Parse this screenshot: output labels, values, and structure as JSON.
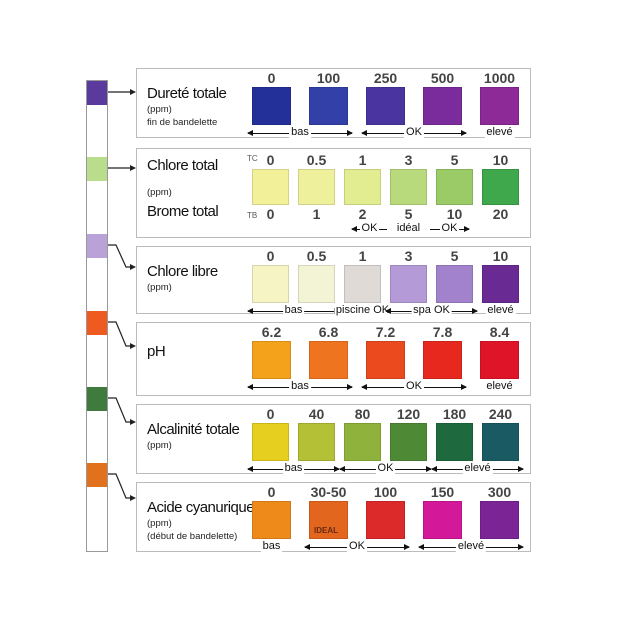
{
  "strip_pads": [
    "#5a3a9c",
    "#b9dd8c",
    "#b9a2d8",
    "#ee5a1f",
    "#3f7b3d",
    "#e2711d"
  ],
  "panels": [
    {
      "title": "Dureté totale",
      "sub": [
        "(ppm)",
        "fin de bandelette"
      ],
      "values": [
        "0",
        "100",
        "250",
        "500",
        "1000"
      ],
      "colors": [
        "#24309a",
        "#3340a8",
        "#4a34a0",
        "#7a2c9c",
        "#8d2a98"
      ],
      "ranges": [
        {
          "label": "bas",
          "from": 0,
          "to": 1,
          "arrows": "both"
        },
        {
          "label": "OK",
          "from": 2,
          "to": 3,
          "arrows": "both"
        },
        {
          "label": "elevé",
          "from": 4,
          "to": 4,
          "arrows": "none"
        }
      ]
    },
    {
      "title": "Chlore total",
      "title2": "Brome total",
      "sub": [
        "(ppm)"
      ],
      "tag_top": "TC",
      "tag_bottom": "TB",
      "values": [
        "0",
        "0.5",
        "1",
        "3",
        "5",
        "10"
      ],
      "values2": [
        "0",
        "1",
        "2",
        "5",
        "10",
        "20"
      ],
      "colors": [
        "#f3f09a",
        "#eef09c",
        "#e2ec90",
        "#b8da7c",
        "#9acb66",
        "#3fa84c"
      ],
      "ranges": [
        {
          "label": "OK",
          "from": 2,
          "to": 2,
          "arrows": "left"
        },
        {
          "label": "idéal",
          "from": 3,
          "to": 3,
          "arrows": "none"
        },
        {
          "label": "OK",
          "from": 4,
          "to": 4,
          "arrows": "right"
        }
      ]
    },
    {
      "title": "Chlore libre",
      "sub": [
        "(ppm)"
      ],
      "values": [
        "0",
        "0.5",
        "1",
        "3",
        "5",
        "10"
      ],
      "colors": [
        "#f6f3c4",
        "#f3f3d6",
        "#e0dad6",
        "#b49ad6",
        "#a282cc",
        "#6a2a94"
      ],
      "ranges": [
        {
          "label": "bas",
          "from": 0,
          "to": 1,
          "arrows": "both"
        },
        {
          "label": "piscine OK",
          "from": 2,
          "to": 2,
          "arrows": "both"
        },
        {
          "label": "spa OK",
          "from": 3,
          "to": 4,
          "arrows": "both"
        },
        {
          "label": "elevé",
          "from": 5,
          "to": 5,
          "arrows": "none"
        }
      ]
    },
    {
      "title": "pH",
      "sub": [],
      "values": [
        "6.2",
        "6.8",
        "7.2",
        "7.8",
        "8.4"
      ],
      "colors": [
        "#f4a21c",
        "#ee7420",
        "#ea4a1e",
        "#e6281e",
        "#e01428"
      ],
      "ranges": [
        {
          "label": "bas",
          "from": 0,
          "to": 1,
          "arrows": "both"
        },
        {
          "label": "OK",
          "from": 2,
          "to": 3,
          "arrows": "both"
        },
        {
          "label": "elevé",
          "from": 4,
          "to": 4,
          "arrows": "none"
        }
      ]
    },
    {
      "title": "Alcalinité totale",
      "sub": [
        "(ppm)"
      ],
      "values": [
        "0",
        "40",
        "80",
        "120",
        "180",
        "240"
      ],
      "colors": [
        "#e6cf1e",
        "#b4c035",
        "#8eb23c",
        "#4e8a36",
        "#1e6a3e",
        "#1a5a62"
      ],
      "ranges": [
        {
          "label": "bas",
          "from": 0,
          "to": 1,
          "arrows": "both"
        },
        {
          "label": "OK",
          "from": 2,
          "to": 3,
          "arrows": "both"
        },
        {
          "label": "elevé",
          "from": 4,
          "to": 5,
          "arrows": "both"
        }
      ]
    },
    {
      "title": "Acide cyanurique",
      "sub": [
        "(ppm)",
        "(début de bandelette)"
      ],
      "values": [
        "0",
        "30-50",
        "100",
        "150",
        "300"
      ],
      "colors": [
        "#ee8a1a",
        "#e2661e",
        "#dc2a2a",
        "#d4189a",
        "#7a2496"
      ],
      "ideal_label": "IDEAL",
      "ideal_index": 1,
      "ranges": [
        {
          "label": "bas",
          "from": 0,
          "to": 0,
          "arrows": "none"
        },
        {
          "label": "OK",
          "from": 1,
          "to": 2,
          "arrows": "both"
        },
        {
          "label": "elevé",
          "from": 3,
          "to": 4,
          "arrows": "both"
        }
      ]
    }
  ]
}
